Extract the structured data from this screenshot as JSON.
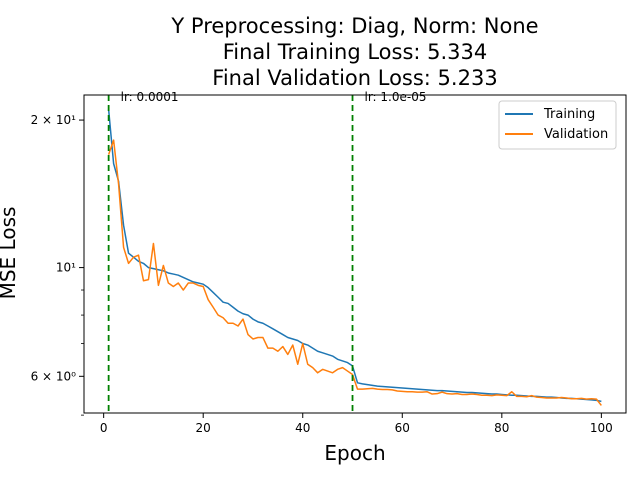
{
  "chart_data": {
    "type": "line",
    "title_lines": [
      "Y Preprocessing: Diag, Norm: None",
      "Final Training Loss: 5.334",
      "Final Validation Loss: 5.233"
    ],
    "xlabel": "Epoch",
    "ylabel": "MSE Loss",
    "yscale": "log",
    "xlim": [
      -3.95,
      104.95
    ],
    "ylim": [
      5.05,
      22.5
    ],
    "x_ticks": [
      {
        "value": 0,
        "label": "0"
      },
      {
        "value": 20,
        "label": "20"
      },
      {
        "value": 40,
        "label": "40"
      },
      {
        "value": 60,
        "label": "60"
      },
      {
        "value": 80,
        "label": "80"
      },
      {
        "value": 100,
        "label": "100"
      }
    ],
    "y_major_ticks": [
      {
        "value": 6,
        "label": "6 × 10⁰"
      },
      {
        "value": 10,
        "label": "10¹"
      },
      {
        "value": 20,
        "label": "2 × 10¹"
      }
    ],
    "y_minor_ticks": [
      5,
      7,
      8,
      9
    ],
    "grid": false,
    "legend_position": "top-right",
    "vertical_lines": [
      {
        "x": 1,
        "label": "lr: 0.0001",
        "color": "#008000"
      },
      {
        "x": 50,
        "label": "lr: 1.0e-05",
        "color": "#008000"
      }
    ],
    "series": [
      {
        "name": "Training",
        "color": "#1f77b4",
        "x": [
          1,
          2,
          3,
          4,
          5,
          6,
          7,
          8,
          9,
          10,
          11,
          12,
          13,
          14,
          15,
          16,
          17,
          18,
          19,
          20,
          21,
          22,
          23,
          24,
          25,
          26,
          27,
          28,
          29,
          30,
          31,
          32,
          33,
          34,
          35,
          36,
          37,
          38,
          39,
          40,
          41,
          42,
          43,
          44,
          45,
          46,
          47,
          48,
          49,
          50,
          51,
          52,
          53,
          54,
          55,
          56,
          57,
          58,
          59,
          60,
          61,
          62,
          63,
          64,
          65,
          66,
          67,
          68,
          69,
          70,
          71,
          72,
          73,
          74,
          75,
          76,
          77,
          78,
          79,
          80,
          81,
          82,
          83,
          84,
          85,
          86,
          87,
          88,
          89,
          90,
          91,
          92,
          93,
          94,
          95,
          96,
          97,
          98,
          99,
          100
        ],
        "y": [
          21.0,
          16.3,
          15.0,
          12.2,
          10.7,
          10.5,
          10.3,
          10.2,
          10.0,
          9.95,
          9.9,
          9.85,
          9.75,
          9.7,
          9.65,
          9.55,
          9.45,
          9.35,
          9.3,
          9.25,
          9.1,
          8.9,
          8.7,
          8.5,
          8.45,
          8.3,
          8.15,
          8.05,
          8.0,
          7.85,
          7.75,
          7.7,
          7.6,
          7.5,
          7.4,
          7.3,
          7.2,
          7.15,
          7.1,
          7.0,
          6.95,
          6.85,
          6.75,
          6.7,
          6.65,
          6.6,
          6.5,
          6.45,
          6.4,
          6.3,
          5.82,
          5.79,
          5.77,
          5.75,
          5.73,
          5.72,
          5.71,
          5.7,
          5.69,
          5.68,
          5.67,
          5.66,
          5.65,
          5.64,
          5.63,
          5.62,
          5.61,
          5.61,
          5.6,
          5.59,
          5.58,
          5.57,
          5.56,
          5.56,
          5.55,
          5.54,
          5.53,
          5.52,
          5.52,
          5.51,
          5.5,
          5.49,
          5.49,
          5.48,
          5.47,
          5.46,
          5.46,
          5.45,
          5.44,
          5.44,
          5.43,
          5.42,
          5.41,
          5.41,
          5.4,
          5.39,
          5.38,
          5.37,
          5.36,
          5.334
        ]
      },
      {
        "name": "Validation",
        "color": "#ff7f0e",
        "x": [
          1,
          2,
          3,
          4,
          5,
          6,
          7,
          8,
          9,
          10,
          11,
          12,
          13,
          14,
          15,
          16,
          17,
          18,
          19,
          20,
          21,
          22,
          23,
          24,
          25,
          26,
          27,
          28,
          29,
          30,
          31,
          32,
          33,
          34,
          35,
          36,
          37,
          38,
          39,
          40,
          41,
          42,
          43,
          44,
          45,
          46,
          47,
          48,
          49,
          50,
          51,
          52,
          53,
          54,
          55,
          56,
          57,
          58,
          59,
          60,
          61,
          62,
          63,
          64,
          65,
          66,
          67,
          68,
          69,
          70,
          71,
          72,
          73,
          74,
          75,
          76,
          77,
          78,
          79,
          80,
          81,
          82,
          83,
          84,
          85,
          86,
          87,
          88,
          89,
          90,
          91,
          92,
          93,
          94,
          95,
          96,
          97,
          98,
          99,
          100
        ],
        "y": [
          17.0,
          18.2,
          14.8,
          11.0,
          10.2,
          10.5,
          10.6,
          9.4,
          9.45,
          11.2,
          9.2,
          10.1,
          9.3,
          9.15,
          9.3,
          9.0,
          9.3,
          9.3,
          9.2,
          9.15,
          8.6,
          8.3,
          8.0,
          7.9,
          7.7,
          7.7,
          7.6,
          7.85,
          7.3,
          7.15,
          7.2,
          7.2,
          6.85,
          6.85,
          6.75,
          6.9,
          6.65,
          6.95,
          6.35,
          7.0,
          6.35,
          6.25,
          6.1,
          6.2,
          6.15,
          6.1,
          6.2,
          6.25,
          6.15,
          6.05,
          5.65,
          5.65,
          5.66,
          5.67,
          5.65,
          5.64,
          5.64,
          5.63,
          5.6,
          5.59,
          5.58,
          5.58,
          5.57,
          5.57,
          5.58,
          5.52,
          5.53,
          5.57,
          5.53,
          5.52,
          5.53,
          5.51,
          5.51,
          5.52,
          5.51,
          5.49,
          5.49,
          5.48,
          5.5,
          5.49,
          5.48,
          5.58,
          5.46,
          5.46,
          5.45,
          5.48,
          5.44,
          5.43,
          5.42,
          5.42,
          5.42,
          5.43,
          5.42,
          5.4,
          5.4,
          5.41,
          5.39,
          5.4,
          5.39,
          5.233
        ]
      }
    ]
  }
}
